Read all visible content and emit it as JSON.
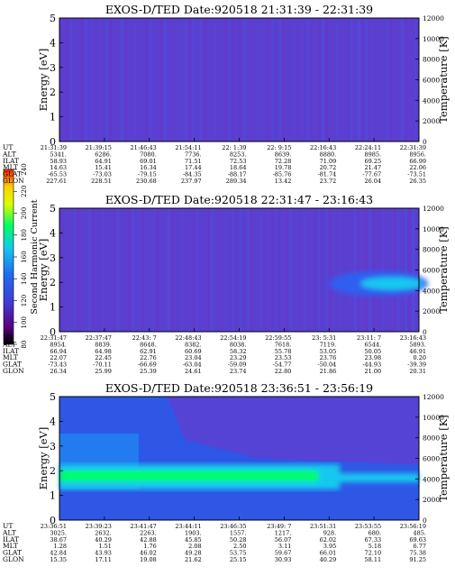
{
  "colorbar": {
    "label": "Second Harmonic Current",
    "ticks": [
      "80",
      "100",
      "120",
      "140",
      "160",
      "180",
      "200",
      "220",
      "240"
    ]
  },
  "chart_data": [
    {
      "type": "heatmap",
      "title": "EXOS-D/TED   Date:920518   21:31:39 - 22:31:39",
      "ylabel": "Energy [eV]",
      "y2label": "Temperature [K]",
      "ylim": [
        0,
        5
      ],
      "y2lim": [
        0,
        12000
      ],
      "yticks": [
        "0",
        "1",
        "2",
        "3",
        "4",
        "5"
      ],
      "y2ticks": [
        "0",
        "2000",
        "4000",
        "6000",
        "8000",
        "10000",
        "12000"
      ],
      "band": null,
      "row_labels": [
        "UT",
        "ALT",
        "ILAT",
        "MLT",
        "GLAT",
        "GLON"
      ],
      "columns": [
        [
          "21:31:39",
          "5341.",
          "58.93",
          "14.63",
          "-65.53",
          "227.61"
        ],
        [
          "21:39:15",
          "6286.",
          "64.91",
          "15.41",
          "-73.03",
          "228.51"
        ],
        [
          "21:46:43",
          "7080.",
          "69.01",
          "16.34",
          "-79.15",
          "230.68"
        ],
        [
          "21:54:11",
          "7736.",
          "71.51",
          "17.44",
          "-84.35",
          "237.97"
        ],
        [
          "22: 1:39",
          "8253.",
          "72.53",
          "18.64",
          "-88.17",
          "289.34"
        ],
        [
          "22: 9:15",
          "8639.",
          "72.28",
          "19.78",
          "-85.76",
          "13.42"
        ],
        [
          "22:16:43",
          "8880.",
          "71.09",
          "20.72",
          "-81.74",
          "23.72"
        ],
        [
          "22:24:11",
          "8985.",
          "69.25",
          "21.47",
          "-77.67",
          "26.04"
        ],
        [
          "22:31:39",
          "8956.",
          "66.99",
          "22.06",
          "-73.51",
          "26.35"
        ]
      ]
    },
    {
      "type": "heatmap",
      "title": "EXOS-D/TED   Date:920518   22:31:47 - 23:16:43",
      "ylabel": "Energy [eV]",
      "y2label": "Temperature [K]",
      "ylim": [
        0,
        5
      ],
      "y2lim": [
        0,
        12000
      ],
      "yticks": [
        "0",
        "1",
        "2",
        "3",
        "4",
        "5"
      ],
      "y2ticks": [
        "0",
        "2000",
        "4000",
        "6000",
        "8000",
        "10000",
        "12000"
      ],
      "band": {
        "start_fraction": 0.75,
        "center_ev": 1.95
      },
      "row_labels": [
        "UT",
        "ALT",
        "ILAT",
        "MLT",
        "GLAT",
        "GLON"
      ],
      "columns": [
        [
          "22:31:47",
          "8954.",
          "66.94",
          "22.07",
          "-73.43",
          "26.34"
        ],
        [
          "22:37:47",
          "8839.",
          "64.98",
          "22.45",
          "-70.11",
          "25.99"
        ],
        [
          "22:43: 7",
          "8648.",
          "62.91",
          "22.76",
          "-66.69",
          "25.39"
        ],
        [
          "22:48:43",
          "8382.",
          "60.69",
          "23.04",
          "-63.04",
          "24.61"
        ],
        [
          "22:54:19",
          "8038.",
          "58.32",
          "23.29",
          "-59.09",
          "23.74"
        ],
        [
          "22:59:55",
          "7618.",
          "55.78",
          "23.53",
          "-54.77",
          "22.80"
        ],
        [
          "23: 5:31",
          "7119.",
          "53.05",
          "23.76",
          "-50.04",
          "21.86"
        ],
        [
          "23:11: 7",
          "6544.",
          "50.05",
          "23.98",
          "-44.93",
          "21.00"
        ],
        [
          "23:16:43",
          "5893.",
          "46.91",
          "0.20",
          "-39.39",
          "20.31"
        ]
      ]
    },
    {
      "type": "heatmap",
      "title": "EXOS-D/TED   Date:920518   23:36:51 - 23:56:19",
      "ylabel": "Energy [eV]",
      "y2label": "Temperature [K]",
      "ylim": [
        0,
        5
      ],
      "y2lim": [
        0,
        12000
      ],
      "yticks": [
        "0",
        "1",
        "2",
        "3",
        "4",
        "5"
      ],
      "y2ticks": [
        "0",
        "2000",
        "4000",
        "6000",
        "8000",
        "10000",
        "12000"
      ],
      "band": {
        "start_fraction": 0.0,
        "center_ev": 1.75
      },
      "row_labels": [
        "UT",
        "ALT",
        "ILAT",
        "MLT",
        "GLAT",
        "GLON"
      ],
      "columns": [
        [
          "23:36:51",
          "3025.",
          "38.67",
          "1.28",
          "42.84",
          "15.35"
        ],
        [
          "23:39:23",
          "2632.",
          "40.29",
          "1.51",
          "43.93",
          "17.11"
        ],
        [
          "23:41:47",
          "2263.",
          "42.88",
          "1.76",
          "46.02",
          "19.08"
        ],
        [
          "23:44:11",
          "1903.",
          "45.85",
          "2.08",
          "49.28",
          "21.62"
        ],
        [
          "23:46:35",
          "1557.",
          "50.28",
          "2.50",
          "53.75",
          "25.15"
        ],
        [
          "23:49: 7",
          "1217.",
          "56.07",
          "3.11",
          "59.67",
          "30.93"
        ],
        [
          "23:51:31",
          "928.",
          "62.02",
          "3.95",
          "66.01",
          "40.29"
        ],
        [
          "23:53:55",
          "680.",
          "67.33",
          "5.18",
          "72.10",
          "58.11"
        ],
        [
          "23:56:19",
          "485.",
          "69.63",
          "6.77",
          "75.38",
          "91.25"
        ]
      ]
    }
  ],
  "colors": {
    "background": "#5b3fd0",
    "colorbar_stops": [
      "#000000",
      "#5a0080",
      "#3f3fd8",
      "#1f6cf0",
      "#14c8f0",
      "#00ff60",
      "#d8ff00",
      "#ffd000",
      "#ff2000"
    ]
  }
}
